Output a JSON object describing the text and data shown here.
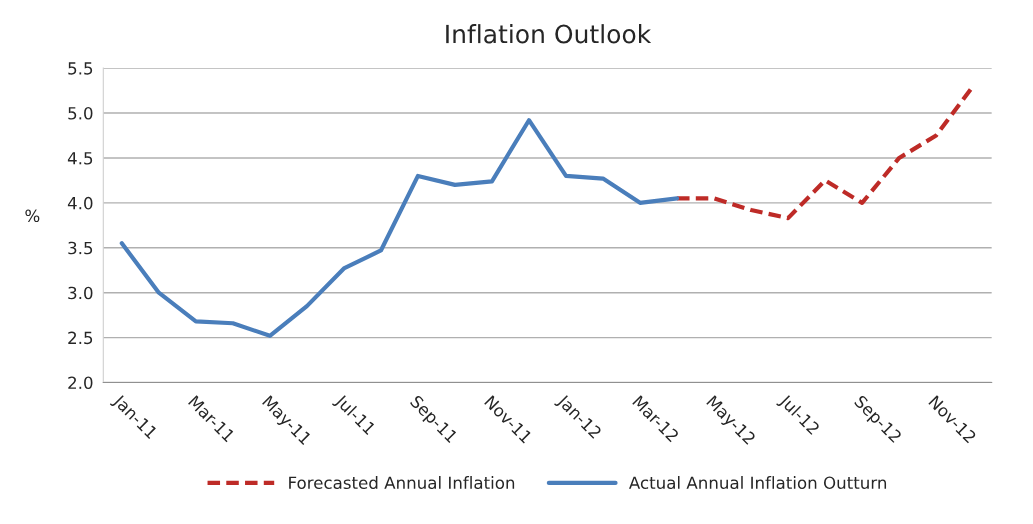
{
  "chart_data": {
    "type": "line",
    "title": "Inflation Outlook",
    "ylabel": "%",
    "categories": [
      "Jan-11",
      null,
      "Mar-11",
      null,
      "May-11",
      null,
      "Jul-11",
      null,
      "Sep-11",
      null,
      "Nov-11",
      null,
      "Jan-12",
      null,
      "Mar-12",
      null,
      "May-12",
      null,
      "Jul-12",
      null,
      "Sep-12",
      null,
      "Nov-12",
      null
    ],
    "series": [
      {
        "name": "Forecasted Annual Inflation",
        "color": "#be2b27",
        "line_style": "dashed",
        "values": [
          null,
          null,
          null,
          null,
          null,
          null,
          null,
          null,
          null,
          null,
          null,
          null,
          null,
          null,
          null,
          4.05,
          4.05,
          3.92,
          3.83,
          4.25,
          4.0,
          4.5,
          4.75,
          5.3
        ]
      },
      {
        "name": "Actual Annual Inflation Outturn",
        "color": "#4a7ebb",
        "line_style": "solid",
        "values": [
          3.55,
          3.0,
          2.68,
          2.66,
          2.52,
          2.85,
          3.27,
          3.47,
          4.3,
          4.2,
          4.24,
          4.92,
          4.3,
          4.27,
          4.0,
          4.05,
          null,
          null,
          null,
          null,
          null,
          null,
          null,
          null
        ]
      }
    ],
    "ylim": [
      2.0,
      5.5
    ],
    "yticks": [
      {
        "value": 2.0,
        "label": "2.0"
      },
      {
        "value": 2.5,
        "label": "2.5"
      },
      {
        "value": 3.0,
        "label": "3.0"
      },
      {
        "value": 3.5,
        "label": "3.5"
      },
      {
        "value": 4.0,
        "label": "4.0"
      },
      {
        "value": 4.5,
        "label": "4.5"
      },
      {
        "value": 5.0,
        "label": "5.0"
      },
      {
        "value": 5.5,
        "label": "5.5"
      }
    ],
    "grid": "y",
    "legend": "bottom"
  }
}
